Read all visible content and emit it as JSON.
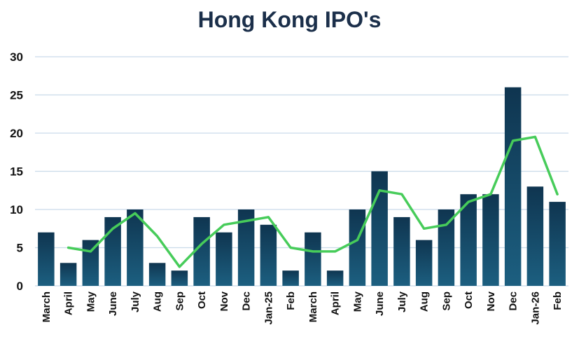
{
  "chart_data": {
    "type": "bar",
    "title": "Hong Kong IPO's",
    "categories": [
      "March",
      "April",
      "May",
      "June",
      "July",
      "Aug",
      "Sep",
      "Oct",
      "Nov",
      "Dec",
      "Jan-25",
      "Feb",
      "March",
      "April",
      "May",
      "June",
      "July",
      "Aug",
      "Sep",
      "Oct",
      "Nov",
      "Dec",
      "Jan-26",
      "Feb"
    ],
    "series": [
      {
        "type": "bar",
        "values": [
          7,
          3,
          6,
          9,
          10,
          3,
          2,
          9,
          7,
          10,
          8,
          2,
          7,
          2,
          10,
          15,
          9,
          6,
          10,
          12,
          12,
          26,
          13,
          11
        ]
      },
      {
        "type": "line",
        "values": [
          null,
          5,
          4.5,
          7.5,
          9.5,
          6.5,
          2.5,
          5.5,
          8,
          8.5,
          9,
          5,
          4.5,
          4.5,
          6,
          12.5,
          12,
          7.5,
          8,
          11,
          12,
          19,
          19.5,
          12
        ]
      }
    ],
    "ylim": [
      0,
      30
    ],
    "yticks": [
      0,
      5,
      10,
      15,
      20,
      25,
      30
    ],
    "grid": true,
    "colors": {
      "bar_top": "#0f3550",
      "bar_bottom": "#1c5f80",
      "line": "#47cc5a",
      "grid": "#c9dbe9",
      "title": "#1b2f4a"
    }
  }
}
